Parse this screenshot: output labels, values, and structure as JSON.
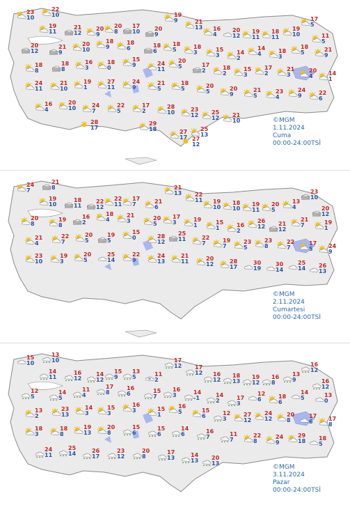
{
  "copyright": "©MGM",
  "panels": [
    {
      "date": "1.11.2024",
      "day": "Cuma",
      "range": "00:00-24:00TSİ",
      "stations": [
        {
          "hi": "23",
          "lo": "10",
          "icon": "sun-cloud-icon"
        },
        {
          "hi": "22",
          "lo": "10",
          "icon": "sun-cloud-icon"
        },
        {
          "hi": "19",
          "lo": "11",
          "icon": "sun-cloud-icon"
        },
        {
          "hi": "21",
          "lo": "12",
          "icon": "fog-icon"
        },
        {
          "hi": "20",
          "lo": "9",
          "icon": "sun-cloud-icon"
        },
        {
          "hi": "20",
          "lo": "8",
          "icon": "sun-cloud-icon"
        },
        {
          "hi": "17",
          "lo": "10",
          "icon": "fog-icon"
        },
        {
          "hi": "20",
          "lo": "9",
          "icon": "fog-icon"
        },
        {
          "hi": "19",
          "lo": "9",
          "icon": "sun-cloud-icon"
        },
        {
          "hi": "21",
          "lo": "13",
          "icon": "sun-cloud-icon"
        },
        {
          "hi": "16",
          "lo": "4",
          "icon": "sun-cloud-icon"
        },
        {
          "hi": "20",
          "lo": "12",
          "icon": "cloud-icon"
        },
        {
          "hi": "19",
          "lo": "11",
          "icon": "sun-cloud-icon"
        },
        {
          "hi": "18",
          "lo": "11",
          "icon": "sun-cloud-icon"
        },
        {
          "hi": "19",
          "lo": "10",
          "icon": "sun-cloud-icon"
        },
        {
          "hi": "17",
          "lo": "5",
          "icon": "sun-cloud-icon"
        },
        {
          "hi": "11",
          "lo": "5",
          "icon": "sun-cloud-icon"
        },
        {
          "hi": "20",
          "lo": "12",
          "icon": "fog-icon"
        },
        {
          "hi": "21",
          "lo": "9",
          "icon": "fog-icon"
        },
        {
          "hi": "20",
          "lo": "10",
          "icon": "sun-cloud-icon"
        },
        {
          "hi": "18",
          "lo": "9",
          "icon": "sun-cloud-icon"
        },
        {
          "hi": "18",
          "lo": "6",
          "icon": "sun-cloud-icon"
        },
        {
          "hi": "18",
          "lo": "6",
          "icon": "fog-icon"
        },
        {
          "hi": "18",
          "lo": "5",
          "icon": "sun-cloud-icon"
        },
        {
          "hi": "18",
          "lo": "3",
          "icon": "sun-cloud-icon"
        },
        {
          "hi": "15",
          "lo": "3",
          "icon": "sun-cloud-icon"
        },
        {
          "hi": "14",
          "lo": "2",
          "icon": "sun-cloud-icon"
        },
        {
          "hi": "14",
          "lo": "4",
          "icon": "sun-cloud-icon"
        },
        {
          "hi": "18",
          "lo": "3",
          "icon": "sun-cloud-icon"
        },
        {
          "hi": "18",
          "lo": "5",
          "icon": "sun-cloud-icon"
        },
        {
          "hi": "21",
          "lo": "9",
          "icon": "sun-cloud-icon"
        },
        {
          "hi": "18",
          "lo": "8",
          "icon": "sun-cloud-icon"
        },
        {
          "hi": "18",
          "lo": "8",
          "icon": "fog-icon"
        },
        {
          "hi": "16",
          "lo": "3",
          "icon": "sun-cloud-icon"
        },
        {
          "hi": "18",
          "lo": "0",
          "icon": "sun-cloud-icon"
        },
        {
          "hi": "15",
          "lo": "9",
          "icon": "sun-cloud-icon"
        },
        {
          "hi": "24",
          "lo": "11",
          "icon": "sun-cloud-icon"
        },
        {
          "hi": "20",
          "lo": "5",
          "icon": "sun-cloud-icon"
        },
        {
          "hi": "17",
          "lo": "2",
          "icon": "fog-icon"
        },
        {
          "hi": "18",
          "lo": "2",
          "icon": "sun-cloud-icon"
        },
        {
          "hi": "15",
          "lo": "3",
          "icon": "sun-cloud-icon"
        },
        {
          "hi": "17",
          "lo": "2",
          "icon": "sun-cloud-icon"
        },
        {
          "hi": "21",
          "lo": "3",
          "icon": "sun-cloud-icon"
        },
        {
          "hi": "20",
          "lo": "4",
          "icon": "sun-cloud-icon"
        },
        {
          "hi": "14",
          "lo": "1",
          "icon": "sun-cloud-icon"
        },
        {
          "hi": "24",
          "lo": "11",
          "icon": "sun-cloud-icon"
        },
        {
          "hi": "21",
          "lo": "10",
          "icon": "sun-cloud-icon"
        },
        {
          "hi": "19",
          "lo": "1",
          "icon": "sun-cloud-icon"
        },
        {
          "hi": "27",
          "lo": "11",
          "icon": "sun-cloud-icon"
        },
        {
          "hi": "24",
          "lo": "9",
          "icon": "sun-cloud-icon"
        },
        {
          "hi": "21",
          "lo": "5",
          "icon": "sun-cloud-icon"
        },
        {
          "hi": "18",
          "lo": "5",
          "icon": "sun-cloud-icon"
        },
        {
          "hi": "20",
          "lo": "5",
          "icon": "sun-cloud-icon"
        },
        {
          "hi": "20",
          "lo": "9",
          "icon": "sun-cloud-icon"
        },
        {
          "hi": "21",
          "lo": "5",
          "icon": "sun-cloud-icon"
        },
        {
          "hi": "23",
          "lo": "4",
          "icon": "sun-cloud-icon"
        },
        {
          "hi": "24",
          "lo": "9",
          "icon": "sun-cloud-icon"
        },
        {
          "hi": "22",
          "lo": "6",
          "icon": "sun-cloud-icon"
        },
        {
          "hi": "16",
          "lo": "4",
          "icon": "sun-cloud-icon"
        },
        {
          "hi": "20",
          "lo": "10",
          "icon": "sun-cloud-icon"
        },
        {
          "hi": "24",
          "lo": "7",
          "icon": "sun-cloud-icon"
        },
        {
          "hi": "22",
          "lo": "5",
          "icon": "sun-cloud-icon"
        },
        {
          "hi": "17",
          "lo": "2",
          "icon": "sun-cloud-icon"
        },
        {
          "hi": "28",
          "lo": "10",
          "icon": "sun-cloud-icon"
        },
        {
          "hi": "23",
          "lo": "12",
          "icon": "sun-cloud-icon"
        },
        {
          "hi": "25",
          "lo": "12",
          "icon": "sun-cloud-icon"
        },
        {
          "hi": "21",
          "lo": "10",
          "icon": "sun-cloud-icon"
        },
        {
          "hi": "28",
          "lo": "17",
          "icon": "sun-icon"
        },
        {
          "hi": "29",
          "lo": "18",
          "icon": "sun-cloud-icon"
        },
        {
          "hi": "27",
          "lo": "17",
          "icon": "sun-cloud-icon"
        },
        {
          "hi": "25",
          "lo": "13",
          "icon": "sun-cloud-icon"
        },
        {
          "hi": "27",
          "lo": "12",
          "icon": "sun-icon"
        }
      ]
    },
    {
      "date": "2.11.2024",
      "day": "Cumartesi",
      "range": "00:00-24:00TSİ",
      "stations": [
        {
          "hi": "24",
          "lo": "7",
          "icon": "sun-cloud-icon"
        },
        {
          "hi": "21",
          "lo": "8",
          "icon": "fog-icon"
        },
        {
          "hi": "19",
          "lo": "10",
          "icon": "sun-cloud-icon"
        },
        {
          "hi": "18",
          "lo": "11",
          "icon": "fog-icon"
        },
        {
          "hi": "22",
          "lo": "12",
          "icon": "fog-icon"
        },
        {
          "hi": "22",
          "lo": "11",
          "icon": "sun-cloud-icon"
        },
        {
          "hi": "17",
          "lo": "7",
          "icon": "sun-cloud-icon"
        },
        {
          "hi": "21",
          "lo": "6",
          "icon": "sun-cloud-icon"
        },
        {
          "hi": "21",
          "lo": "13",
          "icon": "sun-cloud-icon"
        },
        {
          "hi": "22",
          "lo": "11",
          "icon": "sun-cloud-icon"
        },
        {
          "hi": "19",
          "lo": "10",
          "icon": "sun-cloud-icon"
        },
        {
          "hi": "18",
          "lo": "10",
          "icon": "sun-cloud-icon"
        },
        {
          "hi": "19",
          "lo": "11",
          "icon": "sun-cloud-icon"
        },
        {
          "hi": "20",
          "lo": "5",
          "icon": "sun-cloud-icon"
        },
        {
          "hi": "13",
          "lo": "4",
          "icon": "sun-cloud-icon"
        },
        {
          "hi": "23",
          "lo": "10",
          "icon": "fog-icon"
        },
        {
          "hi": "20",
          "lo": "12",
          "icon": "fog-icon"
        },
        {
          "hi": "20",
          "lo": "8",
          "icon": "sun-cloud-icon"
        },
        {
          "hi": "19",
          "lo": "8",
          "icon": "sun-cloud-icon"
        },
        {
          "hi": "16",
          "lo": "2",
          "icon": "fog-icon"
        },
        {
          "hi": "18",
          "lo": "4",
          "icon": "sun-cloud-icon"
        },
        {
          "hi": "21",
          "lo": "3",
          "icon": "sun-cloud-icon"
        },
        {
          "hi": "20",
          "lo": "5",
          "icon": "sun-cloud-icon"
        },
        {
          "hi": "17",
          "lo": "3",
          "icon": "sun-cloud-icon"
        },
        {
          "hi": "19",
          "lo": "1",
          "icon": "sun-cloud-icon"
        },
        {
          "hi": "15",
          "lo": "1",
          "icon": "sun-cloud-icon"
        },
        {
          "hi": "16",
          "lo": "2",
          "icon": "sun-cloud-icon"
        },
        {
          "hi": "26",
          "lo": "12",
          "icon": "sun-cloud-icon"
        },
        {
          "hi": "21",
          "lo": "12",
          "icon": "fog-icon"
        },
        {
          "hi": "21",
          "lo": "7",
          "icon": "sun-cloud-icon"
        },
        {
          "hi": "19",
          "lo": "1",
          "icon": "sun-cloud-icon"
        },
        {
          "hi": "21",
          "lo": "4",
          "icon": "sun-cloud-icon"
        },
        {
          "hi": "22",
          "lo": "7",
          "icon": "sun-cloud-icon"
        },
        {
          "hi": "20",
          "lo": "5",
          "icon": "sun-cloud-icon"
        },
        {
          "hi": "19",
          "lo": "5",
          "icon": "fog-icon"
        },
        {
          "hi": "15",
          "lo": "0",
          "icon": "sun-cloud-icon"
        },
        {
          "hi": "28",
          "lo": "12",
          "icon": "sun-cloud-icon"
        },
        {
          "hi": "25",
          "lo": "11",
          "icon": "fog-icon"
        },
        {
          "hi": "22",
          "lo": "7",
          "icon": "sun-cloud-icon"
        },
        {
          "hi": "19",
          "lo": "7",
          "icon": "sun-cloud-icon"
        },
        {
          "hi": "23",
          "lo": "5",
          "icon": "sun-cloud-icon"
        },
        {
          "hi": "23",
          "lo": "8",
          "icon": "sun-cloud-icon"
        },
        {
          "hi": "22",
          "lo": "7",
          "icon": "sun-cloud-icon"
        },
        {
          "hi": "17",
          "lo": "5",
          "icon": "sun-cloud-icon"
        },
        {
          "hi": "24",
          "lo": "9",
          "icon": "sun-cloud-icon"
        },
        {
          "hi": "23",
          "lo": "10",
          "icon": "sun-cloud-icon"
        },
        {
          "hi": "19",
          "lo": "3",
          "icon": "sun-cloud-icon"
        },
        {
          "hi": "20",
          "lo": "5",
          "icon": "sun-cloud-icon"
        },
        {
          "hi": "25",
          "lo": "14",
          "icon": "cloud-icon"
        },
        {
          "hi": "22",
          "lo": "9",
          "icon": "sun-cloud-icon"
        },
        {
          "hi": "24",
          "lo": "13",
          "icon": "sun-cloud-icon"
        },
        {
          "hi": "21",
          "lo": "11",
          "icon": "sun-cloud-icon"
        },
        {
          "hi": "20",
          "lo": "12",
          "icon": "sun-cloud-icon"
        },
        {
          "hi": "28",
          "lo": "17",
          "icon": "sun-cloud-icon"
        },
        {
          "hi": "30",
          "lo": "19",
          "icon": "cloud-icon"
        },
        {
          "hi": "30",
          "lo": "14",
          "icon": "cloud-icon"
        },
        {
          "hi": "25",
          "lo": "14",
          "icon": "cloud-icon"
        },
        {
          "hi": "26",
          "lo": "13",
          "icon": "cloud-icon"
        }
      ]
    },
    {
      "date": "3.11.2024",
      "day": "Pazar",
      "range": "00:00-24:00TSİ",
      "stations": [
        {
          "hi": "15",
          "lo": "10",
          "icon": "cloud-icon"
        },
        {
          "hi": "13",
          "lo": "10",
          "icon": "rain-icon"
        },
        {
          "hi": "14",
          "lo": "11",
          "icon": "rain-icon"
        },
        {
          "hi": "16",
          "lo": "12",
          "icon": "rain-icon"
        },
        {
          "hi": "14",
          "lo": "12",
          "icon": "rain-icon"
        },
        {
          "hi": "15",
          "lo": "9",
          "icon": "rain-icon"
        },
        {
          "hi": "13",
          "lo": "5",
          "icon": "rain-icon"
        },
        {
          "hi": "11",
          "lo": "2",
          "icon": "snow-icon"
        },
        {
          "hi": "17",
          "lo": "12",
          "icon": "rain-icon"
        },
        {
          "hi": "17",
          "lo": "12",
          "icon": "rain-icon"
        },
        {
          "hi": "16",
          "lo": "12",
          "icon": "rain-icon"
        },
        {
          "hi": "18",
          "lo": "13",
          "icon": "rain-icon"
        },
        {
          "hi": "19",
          "lo": "12",
          "icon": "rain-icon"
        },
        {
          "hi": "16",
          "lo": "8",
          "icon": "rain-icon"
        },
        {
          "hi": "13",
          "lo": "9",
          "icon": "rain-icon"
        },
        {
          "hi": "16",
          "lo": "12",
          "icon": "rain-icon"
        },
        {
          "hi": "16",
          "lo": "12",
          "icon": "rain-icon"
        },
        {
          "hi": "12",
          "lo": "5",
          "icon": "rain-icon"
        },
        {
          "hi": "14",
          "lo": "5",
          "icon": "rain-icon"
        },
        {
          "hi": "11",
          "lo": "4",
          "icon": "rain-icon"
        },
        {
          "hi": "17",
          "lo": "8",
          "icon": "rain-icon"
        },
        {
          "hi": "16",
          "lo": "6",
          "icon": "rain-icon"
        },
        {
          "hi": "15",
          "lo": "7",
          "icon": "rain-icon"
        },
        {
          "hi": "16",
          "lo": "3",
          "icon": "rain-icon"
        },
        {
          "hi": "14",
          "lo": "-1",
          "icon": "rain-icon"
        },
        {
          "hi": "14",
          "lo": "2",
          "icon": "rain-icon"
        },
        {
          "hi": "17",
          "lo": "3",
          "icon": "rain-icon"
        },
        {
          "hi": "12",
          "lo": "6",
          "icon": "cloud-icon"
        },
        {
          "hi": "18",
          "lo": "6",
          "icon": "sun-cloud-icon"
        },
        {
          "hi": "14",
          "lo": "5",
          "icon": "cloud-icon"
        },
        {
          "hi": "13",
          "lo": "0",
          "icon": "cloud-icon"
        },
        {
          "hi": "13",
          "lo": "2",
          "icon": "sun-cloud-icon"
        },
        {
          "hi": "23",
          "lo": "13",
          "icon": "sun-cloud-icon"
        },
        {
          "hi": "14",
          "lo": "3",
          "icon": "sun-cloud-icon"
        },
        {
          "hi": "15",
          "lo": "3",
          "icon": "sun-cloud-icon"
        },
        {
          "hi": "16",
          "lo": "3",
          "icon": "sun-cloud-icon"
        },
        {
          "hi": "15",
          "lo": "1",
          "icon": "sun-cloud-icon"
        },
        {
          "hi": "16",
          "lo": "5",
          "icon": "sun-cloud-icon"
        },
        {
          "hi": "15",
          "lo": "6",
          "icon": "sun-cloud-icon"
        },
        {
          "hi": "12",
          "lo": "3",
          "icon": "rain-icon"
        },
        {
          "hi": "27",
          "lo": "12",
          "icon": "sun-cloud-icon"
        },
        {
          "hi": "24",
          "lo": "12",
          "icon": "sun-cloud-icon"
        },
        {
          "hi": "20",
          "lo": "8",
          "icon": "sun-cloud-icon"
        },
        {
          "hi": "17",
          "lo": "6",
          "icon": "cloud-icon"
        },
        {
          "hi": "17",
          "lo": "8",
          "icon": "sun-cloud-icon"
        },
        {
          "hi": "18",
          "lo": "3",
          "icon": "sun-cloud-icon"
        },
        {
          "hi": "18",
          "lo": "8",
          "icon": "sun-cloud-icon"
        },
        {
          "hi": "19",
          "lo": "13",
          "icon": "sun-cloud-icon"
        },
        {
          "hi": "20",
          "lo": "8",
          "icon": "sun-cloud-icon"
        },
        {
          "hi": "15",
          "lo": "6",
          "icon": "rain-icon"
        },
        {
          "hi": "15",
          "lo": "6",
          "icon": "rain-icon"
        },
        {
          "hi": "14",
          "lo": "6",
          "icon": "rain-icon"
        },
        {
          "hi": "16",
          "lo": "7",
          "icon": "rain-icon"
        },
        {
          "hi": "11",
          "lo": "7",
          "icon": "rain-icon"
        },
        {
          "hi": "22",
          "lo": "8",
          "icon": "sun-cloud-icon"
        },
        {
          "hi": "24",
          "lo": "9",
          "icon": "sun-cloud-icon"
        },
        {
          "hi": "29",
          "lo": "18",
          "icon": "sun-cloud-icon"
        },
        {
          "hi": "18",
          "lo": "5",
          "icon": "cloud-icon"
        },
        {
          "hi": "24",
          "lo": "11",
          "icon": "rain-icon"
        },
        {
          "hi": "25",
          "lo": "14",
          "icon": "rain-icon"
        },
        {
          "hi": "26",
          "lo": "17",
          "icon": "rain-icon"
        },
        {
          "hi": "23",
          "lo": "12",
          "icon": "rain-icon"
        },
        {
          "hi": "20",
          "lo": "8",
          "icon": "rain-icon"
        },
        {
          "hi": "17",
          "lo": "13",
          "icon": "rain-icon"
        },
        {
          "hi": "14",
          "lo": "13",
          "icon": "rain-icon"
        },
        {
          "hi": "20",
          "lo": "13",
          "icon": "rain-icon"
        }
      ]
    }
  ]
}
